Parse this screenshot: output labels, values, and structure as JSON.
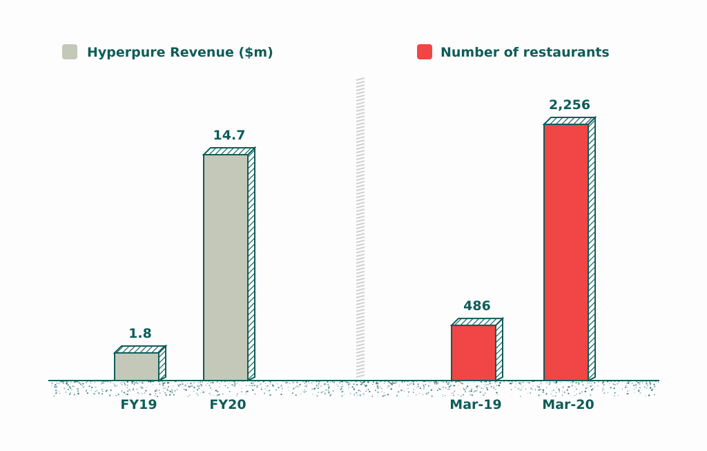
{
  "colors": {
    "text": "#0d5c58",
    "revenue_bar": "#c4c8b8",
    "restaurants_bar": "#f04646",
    "divider": "#d0d0d0",
    "ground": "#0d5c58"
  },
  "chart_data": [
    {
      "type": "bar",
      "categories": [
        "FY19",
        "FY20"
      ],
      "series": [
        {
          "name": "Hyperpure Revenue ($m)",
          "values": [
            1.8,
            14.7
          ]
        }
      ],
      "value_labels": [
        "1.8",
        "14.7"
      ],
      "grid": false,
      "legend": "top-left"
    },
    {
      "type": "bar",
      "categories": [
        "Mar-19",
        "Mar-20"
      ],
      "series": [
        {
          "name": "Number of restaurants",
          "values": [
            486,
            2256
          ]
        }
      ],
      "value_labels": [
        "486",
        "2,256"
      ],
      "grid": false,
      "legend": "top-right"
    }
  ]
}
